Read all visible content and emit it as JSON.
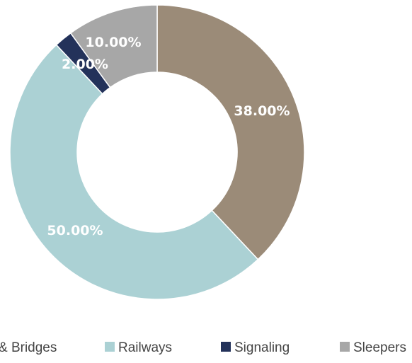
{
  "chart_data": {
    "type": "pie",
    "variant": "donut",
    "categories": [
      "Tunnels & Bridges",
      "Railways",
      "Signaling",
      "Sleepers"
    ],
    "values": [
      38.0,
      50.0,
      2.0,
      10.0
    ],
    "labels": [
      "38.00%",
      "50.00%",
      "2.00%",
      "10.00%"
    ],
    "colors": [
      "#9b8b78",
      "#abd1d4",
      "#23325a",
      "#a7a7a7"
    ],
    "legend_position": "bottom",
    "legend": {
      "items": [
        "& Bridges",
        "Railways",
        "Signaling",
        "Sleepers"
      ]
    }
  }
}
